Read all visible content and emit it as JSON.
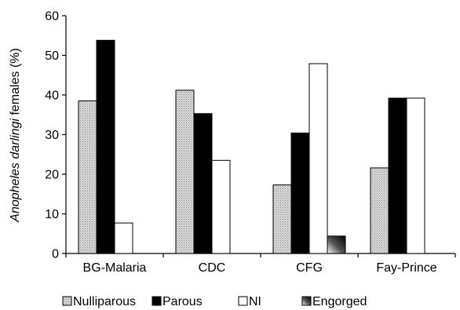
{
  "chart_data": {
    "type": "bar",
    "ylabel_italic": "Anopheles darlingi",
    "ylabel_rest": " females (%)",
    "categories": [
      "BG-Malaria",
      "CDC",
      "CFG",
      "Fay-Prince"
    ],
    "ylim": [
      0,
      60
    ],
    "yticks": [
      0,
      10,
      20,
      30,
      40,
      50,
      60
    ],
    "legend_position": "bottom",
    "grid": false,
    "series": [
      {
        "name": "Nulliparous",
        "fill": "dots-gray",
        "values": [
          38.5,
          41.2,
          17.3,
          21.6
        ]
      },
      {
        "name": "Parous",
        "fill": "#000000",
        "values": [
          53.8,
          35.3,
          30.4,
          39.2
        ]
      },
      {
        "name": "NI",
        "fill": "#ffffff",
        "values": [
          7.7,
          23.5,
          47.9,
          39.2
        ]
      },
      {
        "name": "Engorged",
        "fill": "gradient-dark",
        "values": [
          null,
          null,
          4.4,
          null
        ]
      }
    ]
  }
}
